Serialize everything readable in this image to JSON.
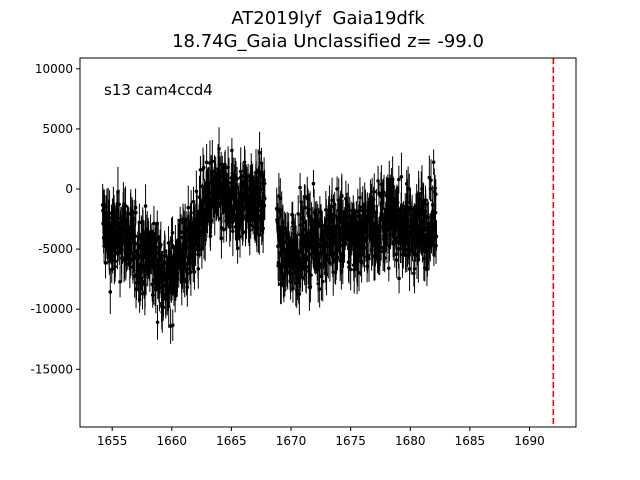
{
  "chart_data": {
    "type": "scatter",
    "title_line1": "AT2019lyf  Gaia19dfk",
    "title_line2": "18.74G_Gaia Unclassified z= -99.0",
    "annotation": "s13 cam4ccd4",
    "xlabel": "",
    "ylabel": "",
    "xlim": [
      1652.3,
      1693.9
    ],
    "ylim": [
      -19800,
      10900
    ],
    "x_ticks": [
      1655,
      1660,
      1665,
      1670,
      1675,
      1680,
      1685,
      1690
    ],
    "y_ticks": [
      10000,
      5000,
      0,
      -5000,
      -10000,
      -15000
    ],
    "vline": {
      "x": 1692.0,
      "color": "#ff0000",
      "style": "dashed"
    },
    "marker_color": "#000000",
    "grid": false,
    "segments": [
      {
        "name": "",
        "x_start": 1654.2,
        "x_end": 1667.8,
        "dx": 0.02
      },
      {
        "name": "",
        "x_start": 1668.8,
        "x_end": 1682.2,
        "dx": 0.02
      }
    ],
    "trend": [
      [
        1654.2,
        -3000
      ],
      [
        1655.0,
        -4500
      ],
      [
        1656.0,
        -3500
      ],
      [
        1657.0,
        -5500
      ],
      [
        1658.0,
        -5500
      ],
      [
        1659.0,
        -6500
      ],
      [
        1659.8,
        -8000
      ],
      [
        1660.5,
        -5500
      ],
      [
        1661.5,
        -5000
      ],
      [
        1662.5,
        -2000
      ],
      [
        1663.5,
        -500
      ],
      [
        1664.5,
        -1000
      ],
      [
        1665.5,
        -1500
      ],
      [
        1666.5,
        -500
      ],
      [
        1667.8,
        -1000
      ],
      [
        1668.8,
        -3500
      ],
      [
        1669.5,
        -6000
      ],
      [
        1670.5,
        -5000
      ],
      [
        1671.5,
        -4000
      ],
      [
        1672.5,
        -4500
      ],
      [
        1674.0,
        -3500
      ],
      [
        1675.5,
        -4000
      ],
      [
        1677.0,
        -3000
      ],
      [
        1678.5,
        -2500
      ],
      [
        1680.0,
        -3500
      ],
      [
        1681.0,
        -3000
      ],
      [
        1682.2,
        -2500
      ]
    ],
    "scatter_amplitude": 2800,
    "typical_error": 1400
  }
}
